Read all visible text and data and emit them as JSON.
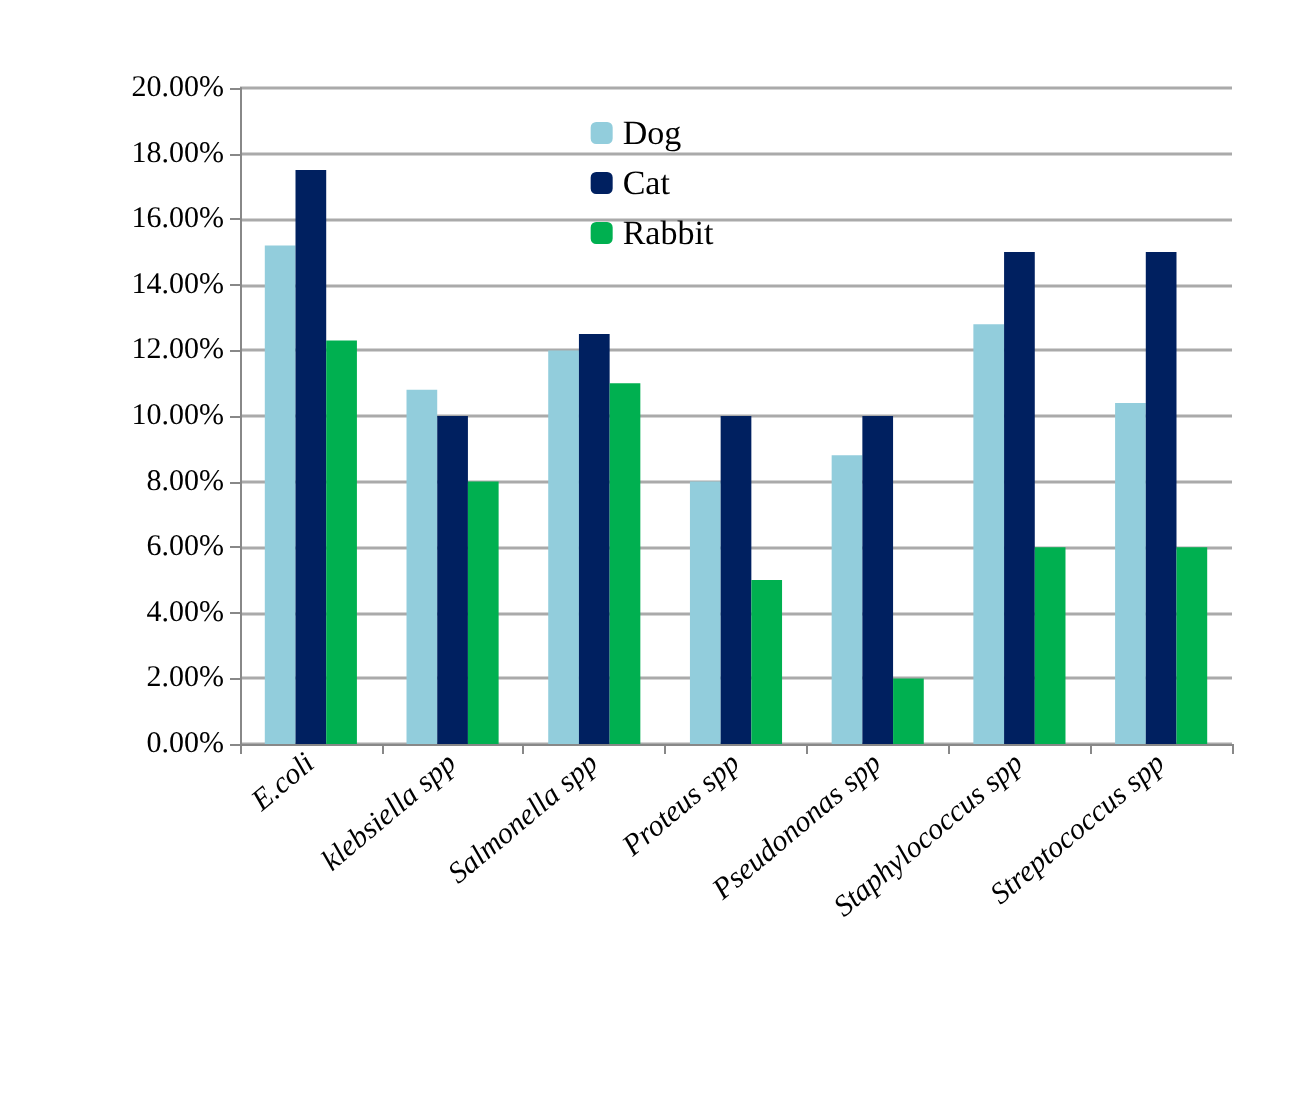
{
  "chart_data": {
    "type": "bar",
    "categories": [
      "E.coli",
      "klebsiella spp",
      "Salmonella spp",
      "Proteus spp",
      "Pseudononas spp",
      "Staphylococcus spp",
      "Streptococcus spp"
    ],
    "series": [
      {
        "name": "Dog",
        "color": "#92cddc",
        "values": [
          15.2,
          10.8,
          12,
          8,
          8.8,
          12.8,
          10.4
        ]
      },
      {
        "name": "Cat",
        "color": "#002060",
        "values": [
          17.5,
          10,
          12.5,
          10,
          10,
          15,
          15
        ]
      },
      {
        "name": "Rabbit",
        "color": "#00b050",
        "values": [
          12.3,
          8,
          11,
          5,
          2,
          6,
          6
        ]
      }
    ],
    "ylim": [
      0,
      20
    ],
    "yticks": [
      {
        "value": 0,
        "label": "0.00%"
      },
      {
        "value": 2,
        "label": "2.00%"
      },
      {
        "value": 4,
        "label": "4.00%"
      },
      {
        "value": 6,
        "label": "6.00%"
      },
      {
        "value": 8,
        "label": "8.00%"
      },
      {
        "value": 10,
        "label": "10.00%"
      },
      {
        "value": 12,
        "label": "12.00%"
      },
      {
        "value": 14,
        "label": "14.00%"
      },
      {
        "value": 16,
        "label": "16.00%"
      },
      {
        "value": 18,
        "label": "18.00%"
      },
      {
        "value": 20,
        "label": "20.00%"
      }
    ],
    "grid": "y",
    "legend": "top"
  }
}
